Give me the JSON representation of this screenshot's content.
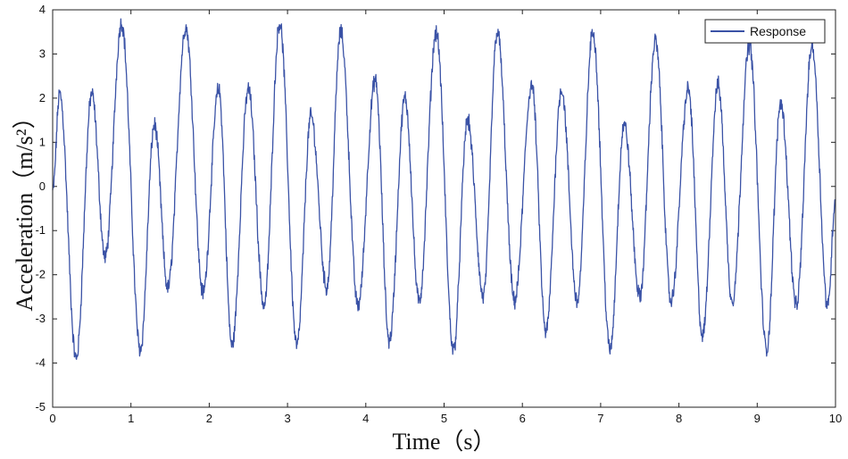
{
  "chart_data": {
    "type": "line",
    "title": "",
    "xlabel": "Time（s）",
    "ylabel": "Acceleration（m/s²）",
    "xlim": [
      0,
      10
    ],
    "ylim": [
      -5,
      4
    ],
    "x_ticks": [
      "0",
      "1",
      "2",
      "3",
      "4",
      "5",
      "6",
      "7",
      "8",
      "9",
      "10"
    ],
    "y_ticks": [
      "-5",
      "-4",
      "-3",
      "-2",
      "-1",
      "0",
      "1",
      "2",
      "3",
      "4"
    ],
    "legend_position": "top-right",
    "grid": false,
    "series": [
      {
        "name": "Response",
        "color": "#3a52a6",
        "extrema_x": [
          0.0,
          0.09,
          0.3,
          0.5,
          0.67,
          0.88,
          1.12,
          1.3,
          1.47,
          1.7,
          1.92,
          2.12,
          2.29,
          2.5,
          2.7,
          2.9,
          3.12,
          3.3,
          3.5,
          3.68,
          3.9,
          4.12,
          4.3,
          4.5,
          4.68,
          4.9,
          5.12,
          5.3,
          5.5,
          5.68,
          5.9,
          6.12,
          6.3,
          6.5,
          6.7,
          6.9,
          7.12,
          7.3,
          7.5,
          7.7,
          7.9,
          8.12,
          8.3,
          8.5,
          8.68,
          8.9,
          9.12,
          9.3,
          9.5,
          9.7,
          9.9,
          10.0
        ],
        "extrema_y": [
          -0.1,
          2.1,
          -3.9,
          2.1,
          -1.6,
          3.7,
          -3.7,
          1.4,
          -2.3,
          3.6,
          -2.4,
          2.2,
          -3.6,
          2.2,
          -2.7,
          3.7,
          -3.6,
          1.6,
          -2.3,
          3.5,
          -2.7,
          2.4,
          -3.5,
          2.0,
          -2.6,
          3.5,
          -3.7,
          1.5,
          -2.5,
          3.5,
          -2.6,
          2.3,
          -3.3,
          2.2,
          -2.6,
          3.5,
          -3.7,
          1.4,
          -2.5,
          3.3,
          -2.6,
          2.2,
          -3.4,
          2.3,
          -2.6,
          3.2,
          -3.7,
          1.9,
          -2.7,
          3.2,
          -2.7,
          -0.3
        ],
        "noise_amplitude": 0.15
      }
    ]
  }
}
